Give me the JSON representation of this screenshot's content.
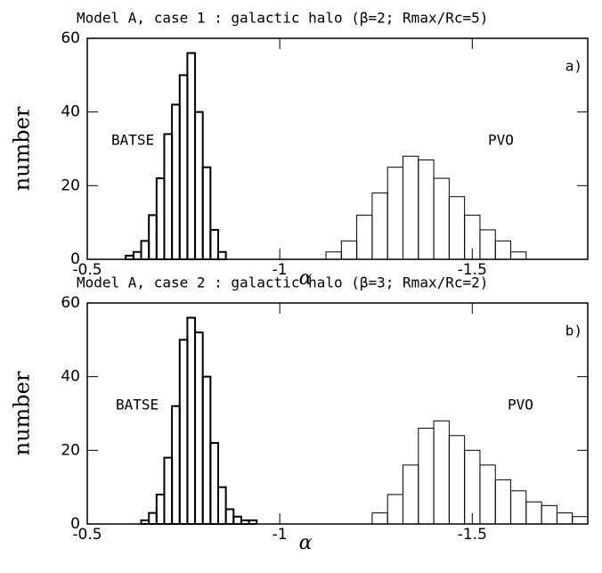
{
  "chart_data": [
    {
      "type": "histogram",
      "title": "Model A, case 1 : galactic halo (β=2; Rmax/Rc=5)",
      "panel_label": "a)",
      "x_label": "α",
      "y_label": "number",
      "xlim": [
        -0.5,
        -1.8
      ],
      "xticks": [
        -0.5,
        -1,
        -1.5
      ],
      "ylim": [
        0,
        60
      ],
      "yticks": [
        0,
        20,
        40,
        60
      ],
      "series": [
        {
          "name": "BATSE",
          "color": "#000000",
          "line_width": 2,
          "bins": [
            -0.6,
            -0.62,
            -0.64,
            -0.66,
            -0.68,
            -0.7,
            -0.72,
            -0.74,
            -0.76,
            -0.78,
            -0.8,
            -0.82,
            -0.84,
            -0.86
          ],
          "values": [
            1,
            2,
            5,
            12,
            22,
            34,
            42,
            50,
            56,
            40,
            25,
            8,
            2
          ]
        },
        {
          "name": "PVO",
          "color": "#000000",
          "line_width": 1,
          "bins": [
            -1.12,
            -1.16,
            -1.2,
            -1.24,
            -1.28,
            -1.32,
            -1.36,
            -1.4,
            -1.44,
            -1.48,
            -1.52,
            -1.56,
            -1.6,
            -1.64
          ],
          "values": [
            2,
            5,
            12,
            18,
            25,
            28,
            27,
            22,
            17,
            12,
            8,
            5,
            2
          ]
        }
      ]
    },
    {
      "type": "histogram",
      "title": "Model A, case 2 : galactic halo (β=3; Rmax/Rc=2)",
      "panel_label": "b)",
      "x_label": "α",
      "y_label": "number",
      "xlim": [
        -0.5,
        -1.8
      ],
      "xticks": [
        -0.5,
        -1,
        -1.5
      ],
      "ylim": [
        0,
        60
      ],
      "yticks": [
        0,
        20,
        40,
        60
      ],
      "series": [
        {
          "name": "BATSE",
          "color": "#000000",
          "line_width": 2,
          "bins": [
            -0.64,
            -0.66,
            -0.68,
            -0.7,
            -0.72,
            -0.74,
            -0.76,
            -0.78,
            -0.8,
            -0.82,
            -0.84,
            -0.86,
            -0.88,
            -0.9,
            -0.92,
            -0.94
          ],
          "values": [
            1,
            3,
            8,
            18,
            32,
            50,
            56,
            52,
            40,
            22,
            10,
            4,
            2,
            1,
            1
          ]
        },
        {
          "name": "PVO",
          "color": "#000000",
          "line_width": 1,
          "bins": [
            -1.24,
            -1.28,
            -1.32,
            -1.36,
            -1.4,
            -1.44,
            -1.48,
            -1.52,
            -1.56,
            -1.6,
            -1.64,
            -1.68,
            -1.72,
            -1.76,
            -1.8
          ],
          "values": [
            3,
            8,
            16,
            26,
            28,
            24,
            20,
            16,
            12,
            9,
            6,
            5,
            3,
            2
          ]
        }
      ]
    }
  ]
}
